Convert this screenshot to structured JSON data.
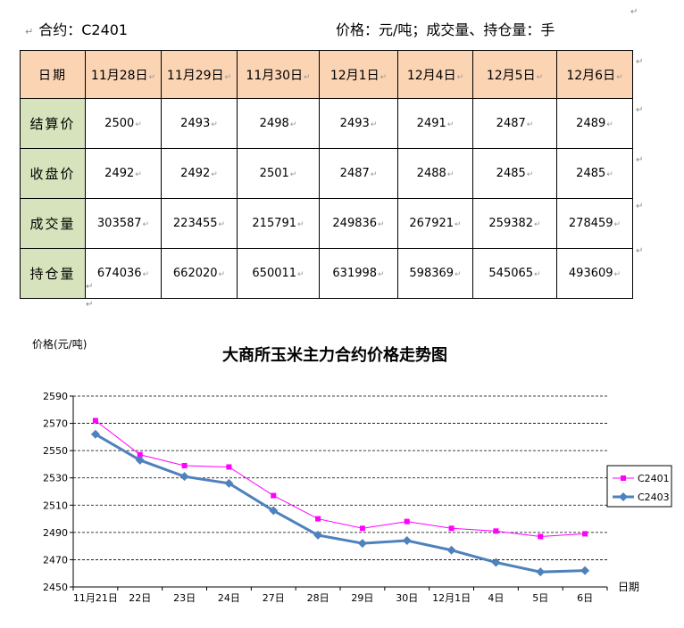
{
  "header": {
    "contract": "合约：C2401",
    "units": "价格：元/吨；成交量、持仓量：手"
  },
  "table": {
    "corner": "日期",
    "dates": [
      "11月28日",
      "11月29日",
      "11月30日",
      "12月1日",
      "12月4日",
      "12月5日",
      "12月6日"
    ],
    "rows": [
      {
        "label": "结算价",
        "values": [
          "2500",
          "2493",
          "2498",
          "2493",
          "2491",
          "2487",
          "2489"
        ]
      },
      {
        "label": "收盘价",
        "values": [
          "2492",
          "2492",
          "2501",
          "2487",
          "2488",
          "2485",
          "2485"
        ]
      },
      {
        "label": "成交量",
        "values": [
          "303587",
          "223455",
          "215791",
          "249836",
          "267921",
          "259382",
          "278459"
        ]
      },
      {
        "label": "持仓量",
        "values": [
          "674036",
          "662020",
          "650011",
          "631998",
          "598369",
          "545065",
          "493609"
        ]
      }
    ]
  },
  "chart_data": {
    "type": "line",
    "title": "大商所玉米主力合约价格走势图",
    "ylabel": "价格(元/吨)",
    "xlabel": "日期",
    "categories": [
      "11月21日",
      "22日",
      "23日",
      "24日",
      "27日",
      "28日",
      "29日",
      "30日",
      "12月1日",
      "4日",
      "5日",
      "6日"
    ],
    "ylim": [
      2450,
      2590
    ],
    "yticks": [
      2450,
      2470,
      2490,
      2510,
      2530,
      2550,
      2570,
      2590
    ],
    "grid": "horizontal dashed",
    "legend": "right",
    "series": [
      {
        "name": "C2401",
        "color": "#ff00ff",
        "marker": "square",
        "values": [
          2572,
          2547,
          2539,
          2538,
          2517,
          2500,
          2493,
          2498,
          2493,
          2491,
          2487,
          2489
        ]
      },
      {
        "name": "C2403",
        "color": "#4f81bd",
        "marker": "diamond",
        "values": [
          2562,
          2543,
          2531,
          2526,
          2506,
          2488,
          2482,
          2484,
          2477,
          2468,
          2461,
          2462
        ]
      }
    ]
  }
}
